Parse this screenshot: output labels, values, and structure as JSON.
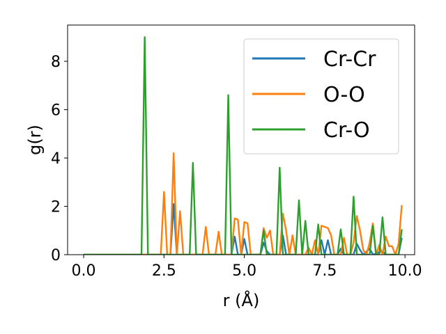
{
  "chart_data": {
    "type": "line",
    "title": "",
    "xlabel": "r (Å)",
    "ylabel": "g(r)",
    "xlim": [
      -0.5,
      10.3
    ],
    "ylim": [
      0,
      9.5
    ],
    "xticks": [
      0.0,
      2.5,
      5.0,
      7.5,
      10.0
    ],
    "xtick_labels": [
      "0.0",
      "2.5",
      "5.0",
      "7.5",
      "10.0"
    ],
    "yticks": [
      0,
      2,
      4,
      6,
      8
    ],
    "ytick_labels": [
      "0",
      "2",
      "4",
      "6",
      "8"
    ],
    "grid": false,
    "legend": "top-right",
    "series": [
      {
        "name": "Cr-Cr",
        "color": "#1f77b4",
        "points": [
          [
            0.0,
            0
          ],
          [
            2.6,
            0
          ],
          [
            2.7,
            0
          ],
          [
            2.8,
            2.1
          ],
          [
            2.9,
            0
          ],
          [
            4.6,
            0
          ],
          [
            4.7,
            0.75
          ],
          [
            4.8,
            0
          ],
          [
            4.9,
            0
          ],
          [
            5.0,
            0.65
          ],
          [
            5.1,
            0
          ],
          [
            5.5,
            0
          ],
          [
            5.6,
            0.5
          ],
          [
            5.7,
            0.15
          ],
          [
            5.8,
            0
          ],
          [
            6.1,
            0
          ],
          [
            6.2,
            0.8
          ],
          [
            6.3,
            0
          ],
          [
            7.3,
            0
          ],
          [
            7.4,
            0.6
          ],
          [
            7.5,
            0
          ],
          [
            7.6,
            0.6
          ],
          [
            7.7,
            0
          ],
          [
            7.9,
            0
          ],
          [
            8.0,
            0.25
          ],
          [
            8.1,
            0
          ],
          [
            8.4,
            0
          ],
          [
            8.5,
            0.45
          ],
          [
            8.6,
            0.2
          ],
          [
            8.7,
            0
          ],
          [
            8.9,
            0.25
          ],
          [
            9.0,
            0
          ],
          [
            9.3,
            0.15
          ],
          [
            9.4,
            0
          ],
          [
            9.8,
            0
          ],
          [
            9.9,
            0.7
          ]
        ]
      },
      {
        "name": "O-O",
        "color": "#ff7f0e",
        "points": [
          [
            0.0,
            0
          ],
          [
            2.4,
            0
          ],
          [
            2.5,
            2.6
          ],
          [
            2.6,
            0
          ],
          [
            2.7,
            0
          ],
          [
            2.8,
            4.2
          ],
          [
            2.9,
            0
          ],
          [
            3.0,
            1.8
          ],
          [
            3.1,
            0
          ],
          [
            3.7,
            0
          ],
          [
            3.8,
            1.15
          ],
          [
            3.9,
            0
          ],
          [
            4.1,
            0
          ],
          [
            4.2,
            0.95
          ],
          [
            4.3,
            0
          ],
          [
            4.6,
            0
          ],
          [
            4.7,
            1.5
          ],
          [
            4.8,
            1.45
          ],
          [
            4.9,
            0
          ],
          [
            5.0,
            1.35
          ],
          [
            5.1,
            1.3
          ],
          [
            5.2,
            0
          ],
          [
            5.5,
            0
          ],
          [
            5.6,
            1.1
          ],
          [
            5.7,
            0.7
          ],
          [
            5.8,
            1.0
          ],
          [
            5.9,
            0
          ],
          [
            6.1,
            0
          ],
          [
            6.2,
            1.7
          ],
          [
            6.3,
            1.0
          ],
          [
            6.4,
            0
          ],
          [
            6.5,
            0.8
          ],
          [
            6.6,
            0
          ],
          [
            6.9,
            0
          ],
          [
            7.0,
            0.3
          ],
          [
            7.1,
            0
          ],
          [
            7.2,
            0.6
          ],
          [
            7.3,
            0
          ],
          [
            7.4,
            1.2
          ],
          [
            7.5,
            1.15
          ],
          [
            7.6,
            1.1
          ],
          [
            7.7,
            0.8
          ],
          [
            7.8,
            0
          ],
          [
            8.0,
            0
          ],
          [
            8.1,
            0.7
          ],
          [
            8.2,
            0
          ],
          [
            8.3,
            0
          ],
          [
            8.4,
            0.5
          ],
          [
            8.5,
            1.6
          ],
          [
            8.6,
            1.0
          ],
          [
            8.7,
            0.2
          ],
          [
            8.8,
            0
          ],
          [
            8.9,
            0.5
          ],
          [
            9.0,
            1.3
          ],
          [
            9.1,
            0
          ],
          [
            9.2,
            0.4
          ],
          [
            9.3,
            0
          ],
          [
            9.4,
            0.75
          ],
          [
            9.5,
            0.35
          ],
          [
            9.6,
            0.35
          ],
          [
            9.7,
            0
          ],
          [
            9.8,
            0.45
          ],
          [
            9.9,
            2.05
          ]
        ]
      },
      {
        "name": "Cr-O",
        "color": "#2ca02c",
        "points": [
          [
            0.0,
            0
          ],
          [
            1.8,
            0
          ],
          [
            1.9,
            9.0
          ],
          [
            2.0,
            0
          ],
          [
            3.3,
            0
          ],
          [
            3.4,
            3.8
          ],
          [
            3.5,
            0
          ],
          [
            4.4,
            0
          ],
          [
            4.5,
            6.6
          ],
          [
            4.6,
            0
          ],
          [
            5.5,
            0
          ],
          [
            5.6,
            1.0
          ],
          [
            5.7,
            0
          ],
          [
            6.0,
            0
          ],
          [
            6.1,
            3.6
          ],
          [
            6.2,
            0
          ],
          [
            6.6,
            0
          ],
          [
            6.7,
            2.25
          ],
          [
            6.8,
            0
          ],
          [
            6.9,
            1.4
          ],
          [
            7.0,
            0
          ],
          [
            7.2,
            0
          ],
          [
            7.3,
            1.25
          ],
          [
            7.4,
            0
          ],
          [
            7.9,
            0
          ],
          [
            8.0,
            1.05
          ],
          [
            8.1,
            0
          ],
          [
            8.3,
            0
          ],
          [
            8.4,
            2.4
          ],
          [
            8.5,
            0
          ],
          [
            8.9,
            0
          ],
          [
            9.0,
            1.2
          ],
          [
            9.1,
            0
          ],
          [
            9.2,
            0
          ],
          [
            9.3,
            1.55
          ],
          [
            9.4,
            0
          ],
          [
            9.8,
            0
          ],
          [
            9.9,
            1.05
          ]
        ]
      }
    ]
  }
}
